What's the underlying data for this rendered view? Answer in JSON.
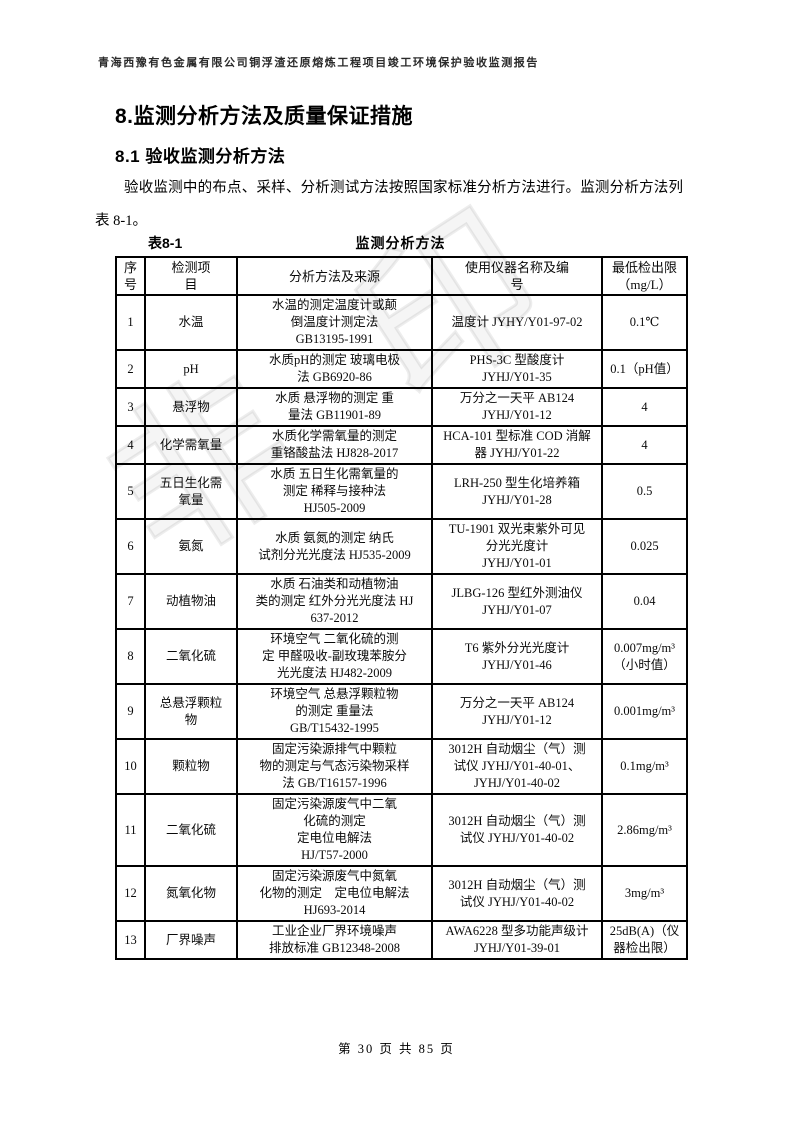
{
  "page": {
    "header": "青海西豫有色金属有限公司铜浮渣还原熔炼工程项目竣工环境保护验收监测报告",
    "footer": "第 30 页 共 85 页",
    "watermark": "非印"
  },
  "section": {
    "h1": "8.监测分析方法及质量保证措施",
    "h2": "8.1 验收监测分析方法",
    "paragraph": "验收监测中的布点、采样、分析测试方法按照国家标准分析方法进行。监测分析方法列表 8-1。"
  },
  "table": {
    "caption_label": "表8-1",
    "caption_title": "监测分析方法",
    "headers": [
      "序\n号",
      "检测项\n目",
      "分析方法及来源",
      "使用仪器名称及编\n号",
      "最低检出限\n（mg/L）"
    ],
    "rows": [
      {
        "no": "1",
        "item": "水温",
        "method": "水温的测定温度计或颠\n倒温度计测定法\nGB13195-1991",
        "instrument": "温度计 JYHY/Y01-97-02",
        "limit": "0.1℃"
      },
      {
        "no": "2",
        "item": "pH",
        "method": "水质pH的测定 玻璃电极\n法 GB6920-86",
        "instrument": "PHS-3C 型酸度计\nJYHJ/Y01-35",
        "limit": "0.1（pH值）"
      },
      {
        "no": "3",
        "item": "悬浮物",
        "method": "水质 悬浮物的测定 重\n量法 GB11901-89",
        "instrument": "万分之一天平 AB124\nJYHJ/Y01-12",
        "limit": "4"
      },
      {
        "no": "4",
        "item": "化学需氧量",
        "method": "水质化学需氧量的测定\n重铬酸盐法 HJ828-2017",
        "instrument": "HCA-101 型标准 COD 消解\n器 JYHJ/Y01-22",
        "limit": "4"
      },
      {
        "no": "5",
        "item": "五日生化需\n氧量",
        "method": "水质 五日生化需氧量的\n测定 稀释与接种法\nHJ505-2009",
        "instrument": "LRH-250 型生化培养箱\nJYHJ/Y01-28",
        "limit": "0.5"
      },
      {
        "no": "6",
        "item": "氨氮",
        "method": "水质 氨氮的测定 纳氏\n试剂分光光度法 HJ535-2009",
        "instrument": "TU-1901 双光束紫外可见\n分光光度计\nJYHJ/Y01-01",
        "limit": "0.025"
      },
      {
        "no": "7",
        "item": "动植物油",
        "method": "水质 石油类和动植物油\n类的测定 红外分光光度法 HJ\n637-2012",
        "instrument": "JLBG-126 型红外测油仪\nJYHJ/Y01-07",
        "limit": "0.04"
      },
      {
        "no": "8",
        "item": "二氧化硫",
        "method": "环境空气 二氧化硫的测\n定 甲醛吸收-副玫瑰苯胺分\n光光度法 HJ482-2009",
        "instrument": "T6 紫外分光光度计\nJYHJ/Y01-46",
        "limit": "0.007mg/m³\n（小时值）"
      },
      {
        "no": "9",
        "item": "总悬浮颗粒\n物",
        "method": "环境空气 总悬浮颗粒物\n的测定 重量法\nGB/T15432-1995",
        "instrument": "万分之一天平 AB124\nJYHJ/Y01-12",
        "limit": "0.001mg/m³"
      },
      {
        "no": "10",
        "item": "颗粒物",
        "method": "固定污染源排气中颗粒\n物的测定与气态污染物采样\n法 GB/T16157-1996",
        "instrument": "3012H 自动烟尘（气）测\n试仪 JYHJ/Y01-40-01、\nJYHJ/Y01-40-02",
        "limit": "0.1mg/m³"
      },
      {
        "no": "11",
        "item": "二氧化硫",
        "method": "固定污染源废气中二氧\n化硫的测定\n定电位电解法\nHJ/T57-2000",
        "instrument": "3012H 自动烟尘（气）测\n试仪 JYHJ/Y01-40-02",
        "limit": "2.86mg/m³"
      },
      {
        "no": "12",
        "item": "氮氧化物",
        "method": "固定污染源废气中氮氧\n化物的测定　定电位电解法\nHJ693-2014",
        "instrument": "3012H 自动烟尘（气）测\n试仪 JYHJ/Y01-40-02",
        "limit": "3mg/m³"
      },
      {
        "no": "13",
        "item": "厂界噪声",
        "method": "工业企业厂界环境噪声\n排放标准 GB12348-2008",
        "instrument": "AWA6228 型多功能声级计\nJYHJ/Y01-39-01",
        "limit": "25dB(A)（仪\n器检出限）"
      }
    ]
  }
}
